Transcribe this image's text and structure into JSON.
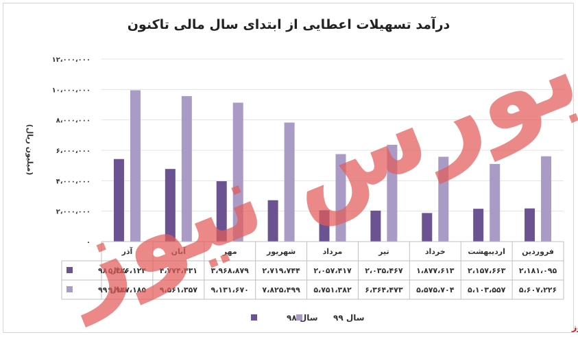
{
  "chart_data": {
    "type": "bar",
    "title": "درآمد تسهیلات اعطایی از ابتدای سال مالی تاکنون",
    "ylabel": "(میلیون ریال)",
    "xlabel": "",
    "ylim": [
      0,
      12000000
    ],
    "y_ticks": [
      "۰",
      "۲،۰۰۰،۰۰۰",
      "۴،۰۰۰،۰۰۰",
      "۶،۰۰۰،۰۰۰",
      "۸،۰۰۰،۰۰۰",
      "۱۰،۰۰۰،۰۰۰",
      "۱۲،۰۰۰،۰۰۰"
    ],
    "categories": [
      "فروردین",
      "اردیبهشت",
      "خرداد",
      "تیر",
      "مرداد",
      "شهریور",
      "مهر",
      "آبان",
      "آذر"
    ],
    "series": [
      {
        "name": "سال ۹۸",
        "color": "#6b5290",
        "values": [
          2181095,
          2157663,
          1877613,
          2035467,
          2057417,
          2719744,
          3968879,
          4774431,
          5426124
        ],
        "labels": [
          "۲،۱۸۱،۰۹۵",
          "۲،۱۵۷،۶۶۳",
          "۱،۸۷۷،۶۱۳",
          "۲،۰۳۵،۴۶۷",
          "۲،۰۵۷،۴۱۷",
          "۲،۷۱۹،۷۴۴",
          "۳،۹۶۸،۸۷۹",
          "۴،۷۷۴،۴۳۱",
          "۵،۴۲۶،۱۲۴"
        ]
      },
      {
        "name": "سال ۹۹",
        "color": "#a99bc6",
        "values": [
          5607226,
          5103557,
          5575704,
          6364473,
          5751382,
          7825499,
          9131670,
          9561357,
          9947185
        ],
        "labels": [
          "۵،۶۰۷،۲۲۶",
          "۵،۱۰۳،۵۵۷",
          "۵،۵۷۵،۷۰۴",
          "۶،۳۶۴،۴۷۳",
          "۵،۷۵۱،۳۸۲",
          "۷،۸۲۵،۴۹۹",
          "۹،۱۳۱،۶۷۰",
          "۹،۵۶۱،۳۵۷",
          "۹،۹۴۷،۱۸۵"
        ]
      }
    ],
    "legend_position": "bottom",
    "grid": true,
    "data_table": true
  },
  "watermark": {
    "text": "بورس نیوز",
    "color": "#e35d5b"
  },
  "brand": {
    "text": "بورس نیوز",
    "color": "#cc1f1f"
  }
}
